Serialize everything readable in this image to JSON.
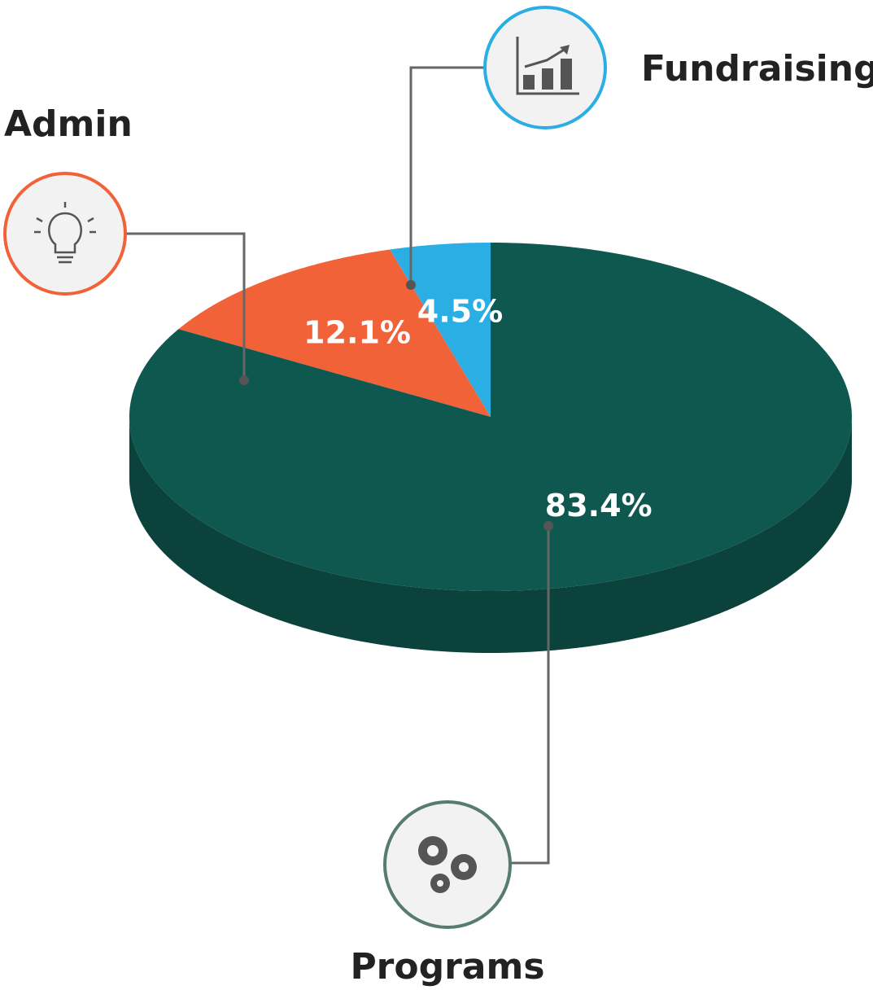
{
  "chart_data": {
    "type": "pie",
    "categories": [
      "Programs",
      "Admin",
      "Fundraising"
    ],
    "values": [
      83.4,
      12.1,
      4.5
    ],
    "value_labels": [
      "83.4%",
      "12.1%",
      "4.5%"
    ],
    "colors": [
      "#0f5850",
      "#f26239",
      "#2aaee4"
    ]
  }
}
